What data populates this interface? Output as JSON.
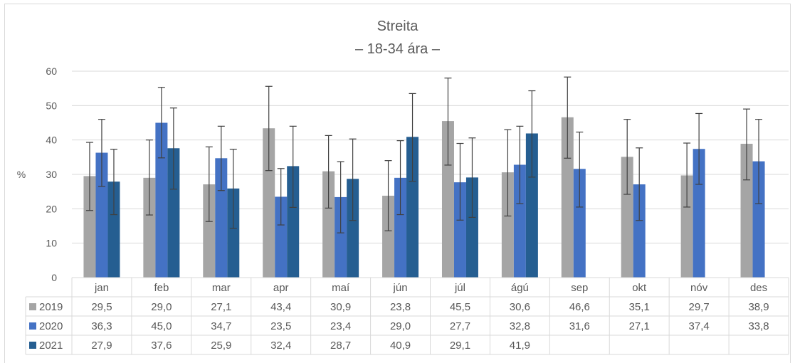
{
  "chart_data": {
    "type": "bar",
    "title": "Streita",
    "subtitle": "– 18-34 ára –",
    "ylabel": "%",
    "ylim": [
      0,
      60
    ],
    "yticks": [
      0,
      10,
      20,
      30,
      40,
      50,
      60
    ],
    "grid": true,
    "legend": "data-table",
    "categories": [
      "jan",
      "feb",
      "mar",
      "apr",
      "maí",
      "jún",
      "júl",
      "ágú",
      "sep",
      "okt",
      "nóv",
      "des"
    ],
    "series": [
      {
        "name": "2019",
        "color": "#a5a5a5",
        "values": [
          29.5,
          29.0,
          27.1,
          43.4,
          30.9,
          23.8,
          45.5,
          30.6,
          46.6,
          35.1,
          29.7,
          38.9
        ],
        "labels": [
          "29,5",
          "29,0",
          "27,1",
          "43,4",
          "30,9",
          "23,8",
          "45,5",
          "30,6",
          "46,6",
          "35,1",
          "29,7",
          "38,9"
        ],
        "error_low": [
          19.5,
          18.2,
          16.3,
          31.1,
          20.2,
          13.6,
          32.7,
          17.9,
          34.7,
          24.2,
          20.5,
          28.4
        ],
        "error_high": [
          39.3,
          40.0,
          38.0,
          55.6,
          41.3,
          34.0,
          58.0,
          43.0,
          58.3,
          46.0,
          39.1,
          49.0
        ]
      },
      {
        "name": "2020",
        "color": "#4472c4",
        "values": [
          36.3,
          45.0,
          34.7,
          23.5,
          23.4,
          29.0,
          27.7,
          32.8,
          31.6,
          27.1,
          37.4,
          33.8
        ],
        "labels": [
          "36,3",
          "45,0",
          "34,7",
          "23,5",
          "23,4",
          "29,0",
          "27,7",
          "32,8",
          "31,6",
          "27,1",
          "37,4",
          "33,8"
        ],
        "error_low": [
          26.5,
          34.8,
          25.3,
          15.3,
          13.0,
          18.3,
          16.7,
          21.5,
          20.5,
          16.6,
          27.1,
          21.5
        ],
        "error_high": [
          46.0,
          55.3,
          44.0,
          31.7,
          33.7,
          39.8,
          39.0,
          44.0,
          42.3,
          37.7,
          47.7,
          46.0
        ]
      },
      {
        "name": "2021",
        "color": "#255e91",
        "values": [
          27.9,
          37.6,
          25.9,
          32.4,
          28.7,
          40.9,
          29.1,
          41.9,
          null,
          null,
          null,
          null
        ],
        "labels": [
          "27,9",
          "37,6",
          "25,9",
          "32,4",
          "28,7",
          "40,9",
          "29,1",
          "41,9",
          "",
          "",
          "",
          ""
        ],
        "error_low": [
          18.3,
          25.7,
          14.3,
          20.4,
          16.6,
          28.0,
          17.5,
          29.2,
          null,
          null,
          null,
          null
        ],
        "error_high": [
          37.3,
          49.3,
          37.3,
          44.0,
          40.3,
          53.5,
          40.6,
          54.3,
          null,
          null,
          null,
          null
        ]
      }
    ]
  }
}
